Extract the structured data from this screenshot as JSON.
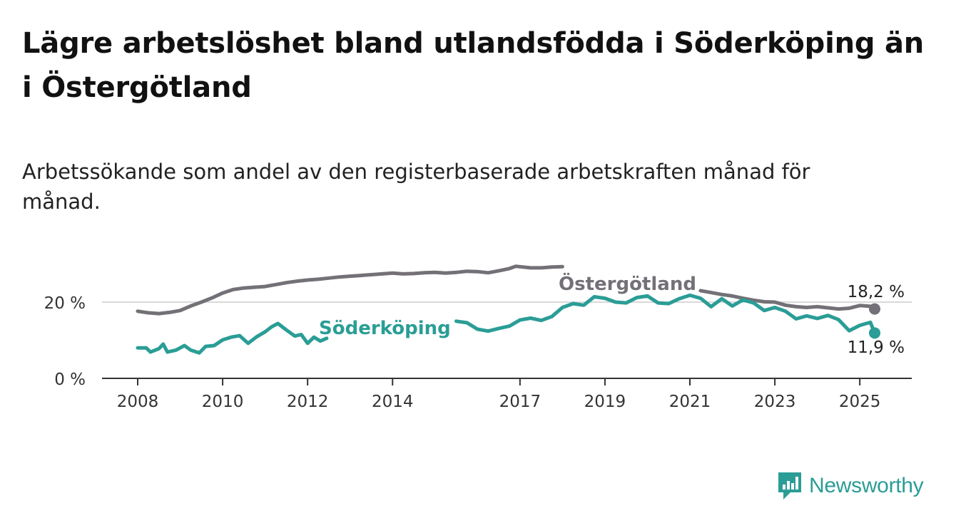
{
  "title": "Lägre arbetslöshet bland utlandsfödda i Söderköping än i Östergötland",
  "subtitle": "Arbetssökande som andel av den registerbaserade arbetskraften månad för månad.",
  "brand": {
    "name": "Newsworthy",
    "icon": "newsworthy-logo-icon",
    "color": "#2a9d96"
  },
  "chart_data": {
    "type": "line",
    "title": "Lägre arbetslöshet bland utlandsfödda i Söderköping än i Östergötland",
    "subtitle": "Arbetssökande som andel av den registerbaserade arbetskraften månad för månad.",
    "xlabel": "",
    "ylabel": "",
    "x_ticks": [
      "2008",
      "2010",
      "2012",
      "2014",
      "2017",
      "2019",
      "2021",
      "2023",
      "2025"
    ],
    "y_ticks": [
      "0 %",
      "20 %"
    ],
    "ylim": [
      0,
      30
    ],
    "grid": "horizontal at 20 %",
    "legend": "inline labels",
    "series": [
      {
        "name": "Östergötland",
        "color": "#747077",
        "end_label": "18,2 %",
        "points": [
          [
            2008.0,
            17.6
          ],
          [
            2008.25,
            17.2
          ],
          [
            2008.5,
            17.0
          ],
          [
            2008.75,
            17.3
          ],
          [
            2009.0,
            17.8
          ],
          [
            2009.25,
            19.0
          ],
          [
            2009.5,
            20.0
          ],
          [
            2009.75,
            21.1
          ],
          [
            2010.0,
            22.4
          ],
          [
            2010.25,
            23.3
          ],
          [
            2010.5,
            23.7
          ],
          [
            2010.75,
            23.9
          ],
          [
            2011.0,
            24.1
          ],
          [
            2011.25,
            24.6
          ],
          [
            2011.5,
            25.1
          ],
          [
            2011.75,
            25.5
          ],
          [
            2012.0,
            25.8
          ],
          [
            2012.25,
            26.0
          ],
          [
            2012.5,
            26.3
          ],
          [
            2012.75,
            26.6
          ],
          [
            2013.0,
            26.8
          ],
          [
            2013.25,
            27.0
          ],
          [
            2013.5,
            27.2
          ],
          [
            2013.75,
            27.4
          ],
          [
            2014.0,
            27.6
          ],
          [
            2014.25,
            27.4
          ],
          [
            2014.5,
            27.5
          ],
          [
            2014.75,
            27.7
          ],
          [
            2015.0,
            27.8
          ],
          [
            2015.25,
            27.6
          ],
          [
            2015.5,
            27.8
          ],
          [
            2015.75,
            28.1
          ],
          [
            2016.0,
            28.0
          ],
          [
            2016.25,
            27.7
          ],
          [
            2016.5,
            28.2
          ],
          [
            2016.75,
            28.8
          ],
          [
            2016.9,
            29.4
          ],
          [
            2017.25,
            29.0
          ],
          [
            2017.5,
            29.0
          ],
          [
            2017.75,
            29.2
          ],
          [
            2018.0,
            29.3
          ],
          [
            2021.25,
            23.0
          ],
          [
            2021.5,
            22.5
          ],
          [
            2021.75,
            22.0
          ],
          [
            2022.0,
            21.6
          ],
          [
            2022.25,
            21.0
          ],
          [
            2022.5,
            20.5
          ],
          [
            2022.75,
            20.1
          ],
          [
            2023.0,
            20.0
          ],
          [
            2023.25,
            19.2
          ],
          [
            2023.5,
            18.8
          ],
          [
            2023.75,
            18.6
          ],
          [
            2024.0,
            18.8
          ],
          [
            2024.25,
            18.5
          ],
          [
            2024.5,
            18.2
          ],
          [
            2024.75,
            18.4
          ],
          [
            2025.0,
            19.1
          ],
          [
            2025.25,
            18.9
          ],
          [
            2025.35,
            18.2
          ]
        ]
      },
      {
        "name": "Söderköping",
        "color": "#2a9d96",
        "end_label": "11,9 %",
        "points": [
          [
            2008.0,
            8.0
          ],
          [
            2008.2,
            8.0
          ],
          [
            2008.3,
            6.9
          ],
          [
            2008.5,
            7.8
          ],
          [
            2008.6,
            9.0
          ],
          [
            2008.7,
            6.9
          ],
          [
            2008.9,
            7.4
          ],
          [
            2009.1,
            8.6
          ],
          [
            2009.25,
            7.4
          ],
          [
            2009.45,
            6.7
          ],
          [
            2009.6,
            8.4
          ],
          [
            2009.8,
            8.6
          ],
          [
            2010.0,
            10.1
          ],
          [
            2010.2,
            10.8
          ],
          [
            2010.4,
            11.2
          ],
          [
            2010.6,
            9.2
          ],
          [
            2010.8,
            10.9
          ],
          [
            2011.0,
            12.2
          ],
          [
            2011.15,
            13.5
          ],
          [
            2011.3,
            14.4
          ],
          [
            2011.5,
            12.7
          ],
          [
            2011.7,
            11.1
          ],
          [
            2011.85,
            11.5
          ],
          [
            2012.0,
            9.2
          ],
          [
            2012.15,
            10.8
          ],
          [
            2012.3,
            9.8
          ],
          [
            2012.45,
            10.5
          ],
          [
            2015.5,
            15.0
          ],
          [
            2015.75,
            14.6
          ],
          [
            2016.0,
            12.9
          ],
          [
            2016.25,
            12.4
          ],
          [
            2016.5,
            13.1
          ],
          [
            2016.75,
            13.7
          ],
          [
            2017.0,
            15.3
          ],
          [
            2017.25,
            15.8
          ],
          [
            2017.5,
            15.2
          ],
          [
            2017.75,
            16.2
          ],
          [
            2018.0,
            18.6
          ],
          [
            2018.25,
            19.6
          ],
          [
            2018.5,
            19.2
          ],
          [
            2018.75,
            21.4
          ],
          [
            2019.0,
            21.0
          ],
          [
            2019.25,
            20.0
          ],
          [
            2019.5,
            19.8
          ],
          [
            2019.75,
            21.2
          ],
          [
            2020.0,
            21.6
          ],
          [
            2020.25,
            19.8
          ],
          [
            2020.5,
            19.6
          ],
          [
            2020.75,
            20.9
          ],
          [
            2021.0,
            21.8
          ],
          [
            2021.25,
            21.0
          ],
          [
            2021.5,
            18.8
          ],
          [
            2021.75,
            20.9
          ],
          [
            2022.0,
            19.0
          ],
          [
            2022.25,
            20.6
          ],
          [
            2022.5,
            19.8
          ],
          [
            2022.75,
            17.8
          ],
          [
            2023.0,
            18.6
          ],
          [
            2023.25,
            17.6
          ],
          [
            2023.5,
            15.6
          ],
          [
            2023.75,
            16.4
          ],
          [
            2024.0,
            15.7
          ],
          [
            2024.25,
            16.5
          ],
          [
            2024.5,
            15.4
          ],
          [
            2024.75,
            12.5
          ],
          [
            2025.0,
            13.9
          ],
          [
            2025.25,
            14.7
          ],
          [
            2025.35,
            11.9
          ]
        ]
      }
    ]
  }
}
